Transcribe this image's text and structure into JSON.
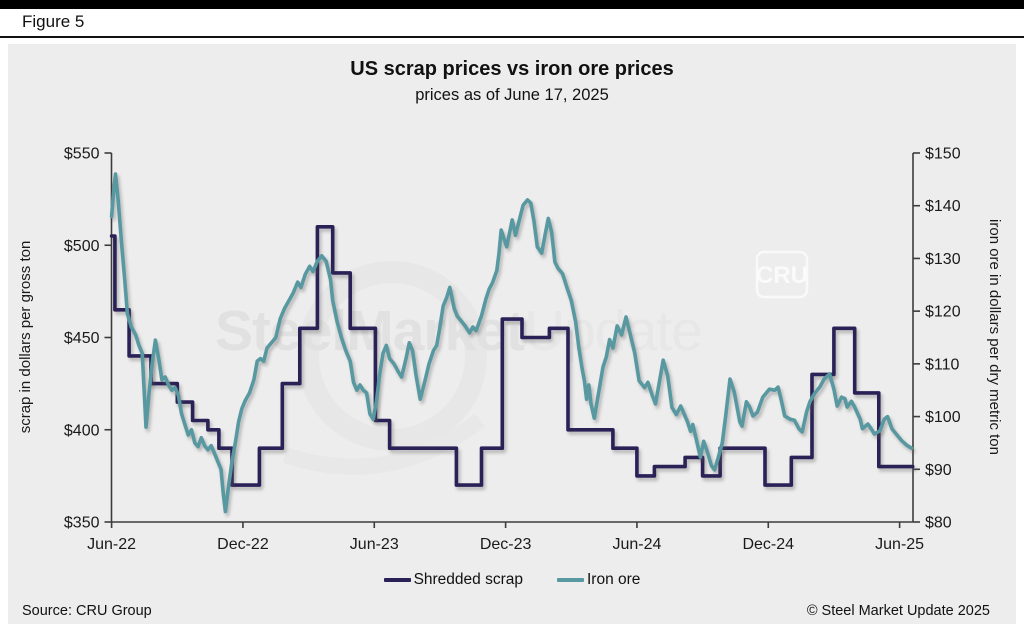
{
  "figure_label": "Figure 5",
  "header": {
    "title": "US scrap prices vs iron ore prices",
    "subtitle": "prices as of June 17, 2025"
  },
  "footer": {
    "source": "Source: CRU Group",
    "copyright": "© Steel Market Update 2025"
  },
  "watermark": {
    "brand_bold": "SteelMarket",
    "brand_light": "Update",
    "cru_badge": "CRU"
  },
  "legend": {
    "items": [
      {
        "label": "Shredded scrap",
        "color": "#2a2157"
      },
      {
        "label": "Iron ore",
        "color": "#5899a1"
      }
    ]
  },
  "chart_data": {
    "type": "line",
    "title": "US scrap prices vs iron ore prices",
    "subtitle": "prices as of June 17, 2025",
    "x_unit": "months after Jun-2022",
    "x_tick_labels": [
      "Jun-22",
      "Dec-22",
      "Jun-23",
      "Dec-23",
      "Jun-24",
      "Dec-24",
      "Jun-25"
    ],
    "x_range_months": [
      0,
      36.6
    ],
    "grid": false,
    "legend_position": "bottom",
    "left_axis": {
      "label": "scrap in dollars per gross ton",
      "min": 350,
      "max": 550,
      "tick_labels": [
        "$550",
        "$500",
        "$450",
        "$400",
        "$350"
      ]
    },
    "right_axis": {
      "label": "iron ore in dollars per dry metric ton",
      "min": 80,
      "max": 150,
      "tick_labels": [
        "$150",
        "$140",
        "$130",
        "$120",
        "$110",
        "$100",
        "$90",
        "$80"
      ]
    },
    "series": [
      {
        "name": "Shredded scrap",
        "axis": "left",
        "color": "#2a2157",
        "style": "step",
        "points": [
          [
            0,
            505
          ],
          [
            0.15,
            465
          ],
          [
            0.8,
            440
          ],
          [
            1.8,
            425
          ],
          [
            3.0,
            415
          ],
          [
            3.7,
            405
          ],
          [
            4.4,
            400
          ],
          [
            4.9,
            390
          ],
          [
            5.5,
            370
          ],
          [
            6.75,
            390
          ],
          [
            7.8,
            425
          ],
          [
            8.6,
            455
          ],
          [
            9.4,
            510
          ],
          [
            10.1,
            485
          ],
          [
            10.9,
            455
          ],
          [
            12.05,
            405
          ],
          [
            12.7,
            390
          ],
          [
            15.75,
            370
          ],
          [
            16.9,
            390
          ],
          [
            17.85,
            460
          ],
          [
            18.75,
            450
          ],
          [
            20.0,
            455
          ],
          [
            20.85,
            400
          ],
          [
            22.9,
            390
          ],
          [
            24.0,
            375
          ],
          [
            24.8,
            380
          ],
          [
            26.2,
            385
          ],
          [
            27.0,
            375
          ],
          [
            27.8,
            390
          ],
          [
            29.85,
            370
          ],
          [
            31.05,
            385
          ],
          [
            32.0,
            430
          ],
          [
            33.0,
            455
          ],
          [
            33.95,
            420
          ],
          [
            35.05,
            380
          ]
        ],
        "end_month": 36.6
      },
      {
        "name": "Iron ore",
        "axis": "right",
        "color": "#5899a1",
        "style": "line",
        "points": [
          [
            0,
            138
          ],
          [
            0.1,
            143
          ],
          [
            0.18,
            146
          ],
          [
            0.3,
            141
          ],
          [
            0.45,
            133
          ],
          [
            0.6,
            126
          ],
          [
            0.72,
            119.5
          ],
          [
            0.9,
            117
          ],
          [
            1.1,
            115.5
          ],
          [
            1.25,
            113.5
          ],
          [
            1.4,
            112
          ],
          [
            1.5,
            104
          ],
          [
            1.57,
            98
          ],
          [
            1.7,
            104
          ],
          [
            1.85,
            110
          ],
          [
            2.0,
            114.5
          ],
          [
            2.15,
            111
          ],
          [
            2.3,
            107
          ],
          [
            2.45,
            107.5
          ],
          [
            2.6,
            106
          ],
          [
            2.75,
            105
          ],
          [
            2.9,
            105.5
          ],
          [
            3.05,
            104
          ],
          [
            3.2,
            100.5
          ],
          [
            3.35,
            98.5
          ],
          [
            3.5,
            96.5
          ],
          [
            3.65,
            97.5
          ],
          [
            3.8,
            95
          ],
          [
            3.95,
            94.3
          ],
          [
            4.1,
            96
          ],
          [
            4.25,
            94.5
          ],
          [
            4.4,
            93.7
          ],
          [
            4.55,
            94.5
          ],
          [
            4.7,
            93
          ],
          [
            4.85,
            91.5
          ],
          [
            5.0,
            90
          ],
          [
            5.1,
            85.5
          ],
          [
            5.2,
            82
          ],
          [
            5.35,
            87
          ],
          [
            5.5,
            91.5
          ],
          [
            5.65,
            95
          ],
          [
            5.8,
            99
          ],
          [
            5.95,
            101.5
          ],
          [
            6.1,
            103
          ],
          [
            6.3,
            104.5
          ],
          [
            6.5,
            107
          ],
          [
            6.65,
            110.5
          ],
          [
            6.8,
            111
          ],
          [
            6.95,
            110.5
          ],
          [
            7.1,
            113
          ],
          [
            7.3,
            114
          ],
          [
            7.5,
            115
          ],
          [
            7.7,
            118.5
          ],
          [
            7.9,
            120.5
          ],
          [
            8.1,
            122
          ],
          [
            8.3,
            123.5
          ],
          [
            8.5,
            125.5
          ],
          [
            8.65,
            124.5
          ],
          [
            8.85,
            127
          ],
          [
            9.05,
            128.5
          ],
          [
            9.2,
            127.5
          ],
          [
            9.4,
            129.5
          ],
          [
            9.6,
            130.5
          ],
          [
            9.8,
            129.5
          ],
          [
            10.0,
            126
          ],
          [
            10.1,
            122
          ],
          [
            10.3,
            118
          ],
          [
            10.5,
            115
          ],
          [
            10.7,
            112.5
          ],
          [
            10.9,
            110.5
          ],
          [
            11.05,
            106.5
          ],
          [
            11.2,
            105
          ],
          [
            11.35,
            106
          ],
          [
            11.5,
            105
          ],
          [
            11.65,
            104.5
          ],
          [
            11.8,
            100.5
          ],
          [
            11.95,
            99.5
          ],
          [
            12.1,
            103
          ],
          [
            12.25,
            108
          ],
          [
            12.4,
            112
          ],
          [
            12.55,
            113.5
          ],
          [
            12.7,
            111
          ],
          [
            12.9,
            110
          ],
          [
            13.1,
            108.5
          ],
          [
            13.25,
            107.5
          ],
          [
            13.45,
            111
          ],
          [
            13.6,
            114
          ],
          [
            13.75,
            112.5
          ],
          [
            13.9,
            108
          ],
          [
            14.1,
            103.3
          ],
          [
            14.3,
            106.5
          ],
          [
            14.5,
            110
          ],
          [
            14.7,
            112.5
          ],
          [
            14.85,
            113.5
          ],
          [
            15.0,
            117
          ],
          [
            15.15,
            121
          ],
          [
            15.3,
            122.5
          ],
          [
            15.45,
            124.5
          ],
          [
            15.65,
            120.5
          ],
          [
            15.8,
            119
          ],
          [
            16.0,
            118
          ],
          [
            16.15,
            117.2
          ],
          [
            16.35,
            115.9
          ],
          [
            16.5,
            117
          ],
          [
            16.65,
            116.3
          ],
          [
            16.9,
            119.1
          ],
          [
            17.1,
            122.3
          ],
          [
            17.25,
            124.2
          ],
          [
            17.4,
            125.4
          ],
          [
            17.6,
            127.7
          ],
          [
            17.7,
            131
          ],
          [
            17.8,
            135.4
          ],
          [
            18.05,
            132.2
          ],
          [
            18.3,
            137.3
          ],
          [
            18.45,
            134.4
          ],
          [
            18.55,
            136
          ],
          [
            18.8,
            140.1
          ],
          [
            19.0,
            141.1
          ],
          [
            19.15,
            140.5
          ],
          [
            19.3,
            136.9
          ],
          [
            19.45,
            132.2
          ],
          [
            19.65,
            131
          ],
          [
            19.8,
            134.4
          ],
          [
            19.95,
            137.6
          ],
          [
            20.1,
            135
          ],
          [
            20.25,
            129.3
          ],
          [
            20.4,
            128.1
          ],
          [
            20.6,
            127.1
          ],
          [
            20.8,
            124.5
          ],
          [
            21.0,
            122
          ],
          [
            21.2,
            118
          ],
          [
            21.35,
            113
          ],
          [
            21.5,
            109
          ],
          [
            21.6,
            106.8
          ],
          [
            21.7,
            103.3
          ],
          [
            21.8,
            106
          ],
          [
            21.9,
            102.4
          ],
          [
            22.05,
            99.7
          ],
          [
            22.2,
            103.3
          ],
          [
            22.45,
            109.4
          ],
          [
            22.6,
            111.3
          ],
          [
            22.75,
            114.6
          ],
          [
            22.9,
            113
          ],
          [
            23.1,
            117.2
          ],
          [
            23.3,
            115.5
          ],
          [
            23.5,
            118.9
          ],
          [
            23.75,
            114.6
          ],
          [
            23.9,
            112.1
          ],
          [
            24.1,
            106.8
          ],
          [
            24.35,
            105.5
          ],
          [
            24.5,
            106.5
          ],
          [
            24.7,
            104
          ],
          [
            24.85,
            102.4
          ],
          [
            25.2,
            110.7
          ],
          [
            25.4,
            107.8
          ],
          [
            25.6,
            101.7
          ],
          [
            25.8,
            100.4
          ],
          [
            26.0,
            102
          ],
          [
            26.3,
            99.1
          ],
          [
            26.45,
            97.2
          ],
          [
            26.55,
            98.5
          ],
          [
            26.7,
            95.9
          ],
          [
            26.9,
            92.3
          ],
          [
            27.05,
            95.3
          ],
          [
            27.2,
            93.5
          ],
          [
            27.4,
            90.7
          ],
          [
            27.55,
            89.9
          ],
          [
            27.7,
            92
          ],
          [
            27.9,
            95
          ],
          [
            28.05,
            100
          ],
          [
            28.25,
            107.1
          ],
          [
            28.45,
            104.6
          ],
          [
            28.7,
            99
          ],
          [
            28.8,
            98.2
          ],
          [
            29.0,
            102.8
          ],
          [
            29.15,
            101.8
          ],
          [
            29.3,
            100.1
          ],
          [
            29.5,
            100.8
          ],
          [
            29.75,
            103.7
          ],
          [
            30.05,
            105.2
          ],
          [
            30.3,
            105
          ],
          [
            30.45,
            105.6
          ],
          [
            30.6,
            103
          ],
          [
            30.75,
            100.1
          ],
          [
            31.0,
            99.5
          ],
          [
            31.2,
            99.3
          ],
          [
            31.4,
            97.7
          ],
          [
            31.55,
            97.1
          ],
          [
            31.75,
            100.9
          ],
          [
            31.9,
            102.8
          ],
          [
            32.1,
            104.3
          ],
          [
            32.35,
            105.6
          ],
          [
            32.55,
            107.1
          ],
          [
            32.8,
            108.1
          ],
          [
            33.0,
            105.2
          ],
          [
            33.15,
            102
          ],
          [
            33.35,
            103.7
          ],
          [
            33.5,
            103.4
          ],
          [
            33.6,
            101.8
          ],
          [
            33.8,
            102.9
          ],
          [
            33.95,
            101.8
          ],
          [
            34.2,
            99.5
          ],
          [
            34.3,
            97.7
          ],
          [
            34.55,
            98.6
          ],
          [
            34.7,
            97.7
          ],
          [
            34.85,
            96.7
          ],
          [
            35.1,
            97.3
          ],
          [
            35.3,
            99.5
          ],
          [
            35.45,
            100
          ],
          [
            35.65,
            97.7
          ],
          [
            35.9,
            96.4
          ],
          [
            36.1,
            95.4
          ],
          [
            36.35,
            94.5
          ],
          [
            36.55,
            94
          ]
        ]
      }
    ]
  }
}
